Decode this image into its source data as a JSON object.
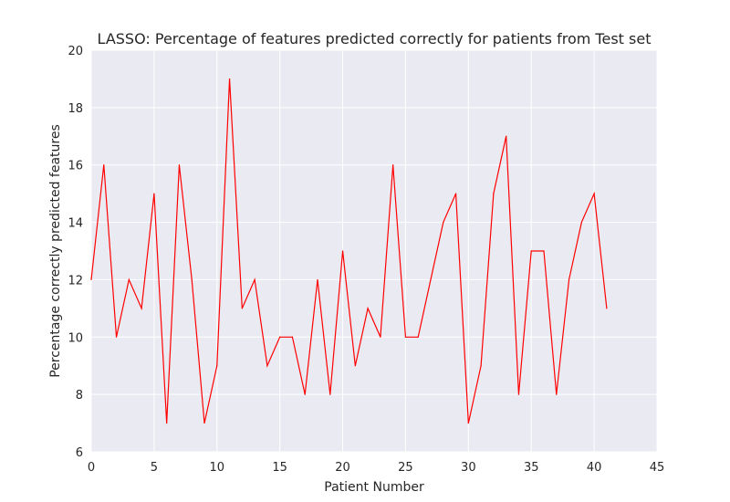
{
  "chart_data": {
    "type": "line",
    "title": "LASSO: Percentage of features predicted correctly for patients from Test set",
    "xlabel": "Patient Number",
    "ylabel": "Percentage correctly predicted features",
    "xlim": [
      0,
      45
    ],
    "ylim": [
      6,
      20
    ],
    "xticks": [
      0,
      5,
      10,
      15,
      20,
      25,
      30,
      35,
      40,
      45
    ],
    "yticks": [
      6,
      8,
      10,
      12,
      14,
      16,
      18,
      20
    ],
    "grid": true,
    "series": [
      {
        "color": "#ff0000",
        "x": [
          0,
          1,
          2,
          3,
          4,
          5,
          6,
          7,
          8,
          9,
          10,
          11,
          12,
          13,
          14,
          15,
          16,
          17,
          18,
          19,
          20,
          21,
          22,
          23,
          24,
          25,
          26,
          27,
          28,
          29,
          30,
          31,
          32,
          33,
          34,
          35,
          36,
          37,
          38,
          39,
          40,
          41
        ],
        "y": [
          12,
          16,
          10,
          12,
          11,
          15,
          7,
          16,
          12,
          7,
          9,
          19,
          11,
          12,
          9,
          10,
          10,
          8,
          12,
          8,
          13,
          9,
          11,
          10,
          16,
          10,
          10,
          12,
          14,
          15,
          7,
          9,
          15,
          17,
          8,
          13,
          13,
          8,
          12,
          14,
          15,
          11
        ]
      }
    ]
  },
  "colors": {
    "plot_background": "#eaeaf2",
    "grid": "#ffffff",
    "line": "#ff0000"
  }
}
